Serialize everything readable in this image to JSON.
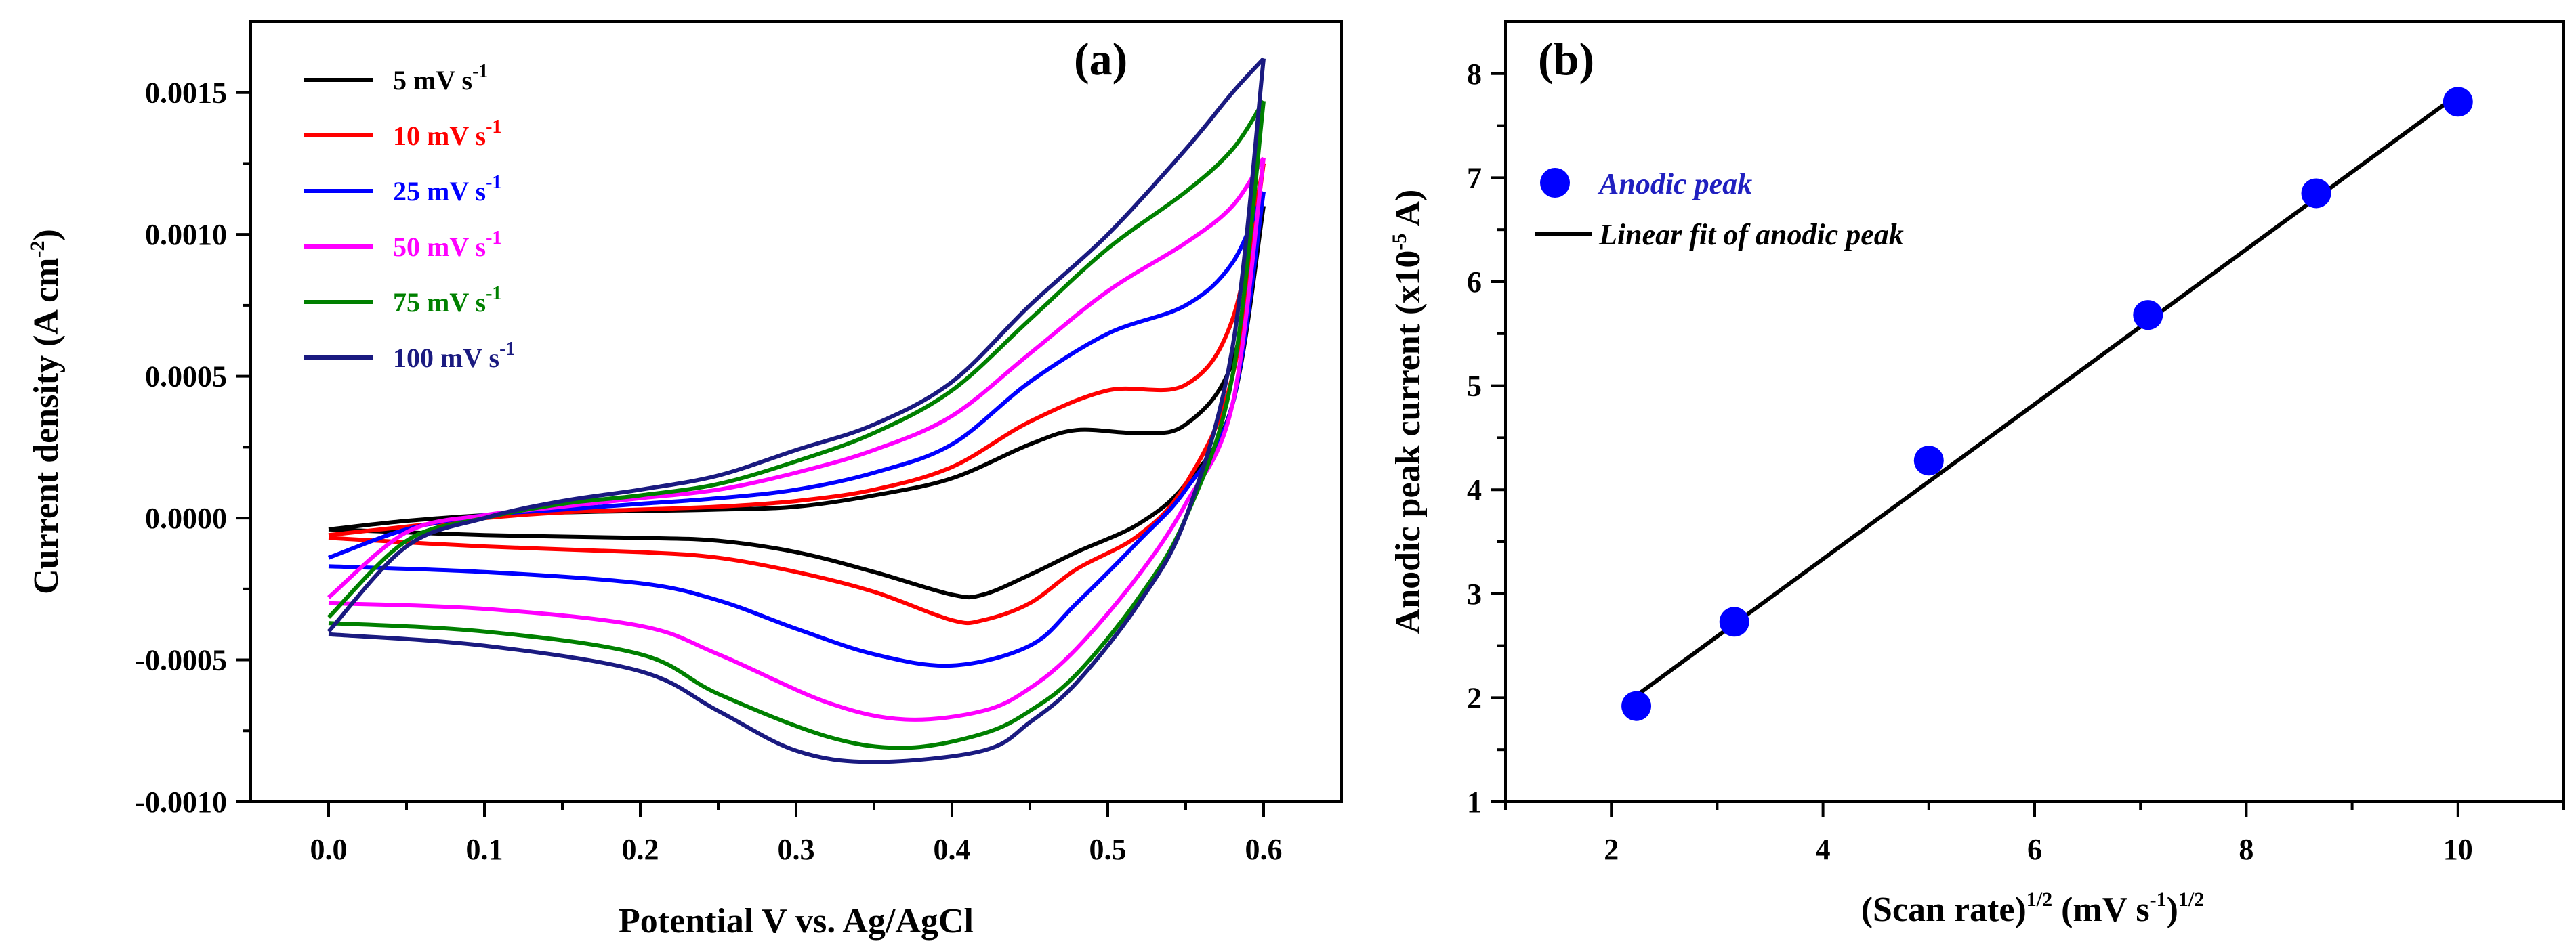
{
  "chart_data": [
    {
      "type": "line",
      "panel_label": "(a)",
      "title": "",
      "xlabel": "Potential V vs. Ag/AgCl",
      "ylabel_main": "Current density (A cm",
      "ylabel_sup": "-2",
      "ylabel_end": ")",
      "xlim": [
        -0.05,
        0.65
      ],
      "ylim": [
        -0.001,
        0.00175
      ],
      "x_ticks": [
        0.0,
        0.1,
        0.2,
        0.3,
        0.4,
        0.5,
        0.6
      ],
      "x_tick_labels": [
        "0.0",
        "0.1",
        "0.2",
        "0.3",
        "0.4",
        "0.5",
        "0.6"
      ],
      "y_ticks": [
        -0.001,
        -0.0005,
        0.0,
        0.0005,
        0.001,
        0.0015
      ],
      "y_tick_labels": [
        "-0.0010",
        "-0.0005",
        "0.0000",
        "0.0005",
        "0.0010",
        "0.0015"
      ],
      "legend_position": "top-left",
      "series": [
        {
          "name": "5 mV s",
          "unit_sup": "-1",
          "color": "#000000",
          "forward": [
            [
              0.0,
              -4e-05
            ],
            [
              0.05,
              -1e-05
            ],
            [
              0.1,
              1e-05
            ],
            [
              0.15,
              2e-05
            ],
            [
              0.2,
              2.5e-05
            ],
            [
              0.25,
              3e-05
            ],
            [
              0.3,
              4e-05
            ],
            [
              0.35,
              8e-05
            ],
            [
              0.4,
              0.00014
            ],
            [
              0.45,
              0.00026
            ],
            [
              0.48,
              0.00031
            ],
            [
              0.52,
              0.0003
            ],
            [
              0.55,
              0.00033
            ],
            [
              0.58,
              0.00055
            ],
            [
              0.6,
              0.0011
            ]
          ],
          "reverse": [
            [
              0.6,
              0.0011
            ],
            [
              0.58,
              0.0004
            ],
            [
              0.55,
              0.00012
            ],
            [
              0.52,
              -2e-05
            ],
            [
              0.48,
              -0.00012
            ],
            [
              0.45,
              -0.0002
            ],
            [
              0.42,
              -0.00027
            ],
            [
              0.4,
              -0.00027
            ],
            [
              0.35,
              -0.00019
            ],
            [
              0.3,
              -0.00012
            ],
            [
              0.25,
              -8e-05
            ],
            [
              0.2,
              -7e-05
            ],
            [
              0.1,
              -6e-05
            ],
            [
              0.0,
              -4e-05
            ]
          ]
        },
        {
          "name": "10 mV s",
          "unit_sup": "-1",
          "color": "#ff0000",
          "forward": [
            [
              0.0,
              -6e-05
            ],
            [
              0.05,
              -3e-05
            ],
            [
              0.1,
              0.0
            ],
            [
              0.15,
              2e-05
            ],
            [
              0.2,
              3e-05
            ],
            [
              0.25,
              4e-05
            ],
            [
              0.3,
              6e-05
            ],
            [
              0.35,
              0.0001
            ],
            [
              0.4,
              0.00018
            ],
            [
              0.45,
              0.00034
            ],
            [
              0.5,
              0.00045
            ],
            [
              0.55,
              0.00047
            ],
            [
              0.58,
              0.0007
            ],
            [
              0.6,
              0.00125
            ]
          ],
          "reverse": [
            [
              0.6,
              0.00125
            ],
            [
              0.58,
              0.0005
            ],
            [
              0.55,
              0.00012
            ],
            [
              0.52,
              -6e-05
            ],
            [
              0.48,
              -0.00018
            ],
            [
              0.45,
              -0.0003
            ],
            [
              0.42,
              -0.00036
            ],
            [
              0.4,
              -0.00036
            ],
            [
              0.35,
              -0.00026
            ],
            [
              0.3,
              -0.00019
            ],
            [
              0.25,
              -0.00014
            ],
            [
              0.2,
              -0.00012
            ],
            [
              0.1,
              -0.0001
            ],
            [
              0.0,
              -7e-05
            ]
          ]
        },
        {
          "name": "25 mV s",
          "unit_sup": "-1",
          "color": "#0000ff",
          "forward": [
            [
              0.0,
              -0.00014
            ],
            [
              0.05,
              -4e-05
            ],
            [
              0.1,
              1e-05
            ],
            [
              0.15,
              3e-05
            ],
            [
              0.2,
              5e-05
            ],
            [
              0.25,
              7e-05
            ],
            [
              0.3,
              0.0001
            ],
            [
              0.35,
              0.00016
            ],
            [
              0.4,
              0.00026
            ],
            [
              0.45,
              0.00048
            ],
            [
              0.5,
              0.00065
            ],
            [
              0.55,
              0.00075
            ],
            [
              0.58,
              0.0009
            ],
            [
              0.6,
              0.00115
            ]
          ],
          "reverse": [
            [
              0.6,
              0.00115
            ],
            [
              0.58,
              0.0004
            ],
            [
              0.55,
              0.0001
            ],
            [
              0.52,
              -8e-05
            ],
            [
              0.48,
              -0.0003
            ],
            [
              0.45,
              -0.00045
            ],
            [
              0.4,
              -0.00052
            ],
            [
              0.35,
              -0.00048
            ],
            [
              0.3,
              -0.00039
            ],
            [
              0.25,
              -0.00029
            ],
            [
              0.2,
              -0.00023
            ],
            [
              0.1,
              -0.00019
            ],
            [
              0.0,
              -0.00017
            ]
          ]
        },
        {
          "name": "50 mV s",
          "unit_sup": "-1",
          "color": "#ff00ff",
          "forward": [
            [
              0.0,
              -0.00028
            ],
            [
              0.05,
              -5e-05
            ],
            [
              0.1,
              1e-05
            ],
            [
              0.15,
              4e-05
            ],
            [
              0.2,
              7e-05
            ],
            [
              0.25,
              0.0001
            ],
            [
              0.3,
              0.00016
            ],
            [
              0.35,
              0.00024
            ],
            [
              0.4,
              0.00036
            ],
            [
              0.45,
              0.00058
            ],
            [
              0.5,
              0.0008
            ],
            [
              0.55,
              0.00097
            ],
            [
              0.58,
              0.0011
            ],
            [
              0.6,
              0.00127
            ]
          ],
          "reverse": [
            [
              0.6,
              0.00127
            ],
            [
              0.58,
              0.0004
            ],
            [
              0.55,
              5e-05
            ],
            [
              0.52,
              -0.0002
            ],
            [
              0.48,
              -0.00046
            ],
            [
              0.45,
              -0.0006
            ],
            [
              0.42,
              -0.00068
            ],
            [
              0.37,
              -0.00071
            ],
            [
              0.32,
              -0.00065
            ],
            [
              0.25,
              -0.00048
            ],
            [
              0.2,
              -0.00038
            ],
            [
              0.1,
              -0.00032
            ],
            [
              0.0,
              -0.0003
            ]
          ]
        },
        {
          "name": "75 mV s",
          "unit_sup": "-1",
          "color": "#008000",
          "forward": [
            [
              0.0,
              -0.00035
            ],
            [
              0.05,
              -8e-05
            ],
            [
              0.1,
              0.0
            ],
            [
              0.15,
              5e-05
            ],
            [
              0.2,
              8e-05
            ],
            [
              0.25,
              0.00012
            ],
            [
              0.3,
              0.0002
            ],
            [
              0.35,
              0.0003
            ],
            [
              0.4,
              0.00045
            ],
            [
              0.45,
              0.0007
            ],
            [
              0.5,
              0.00095
            ],
            [
              0.55,
              0.00115
            ],
            [
              0.58,
              0.0013
            ],
            [
              0.6,
              0.00147
            ]
          ],
          "reverse": [
            [
              0.6,
              0.00147
            ],
            [
              0.58,
              0.0005
            ],
            [
              0.55,
              0.0
            ],
            [
              0.52,
              -0.00028
            ],
            [
              0.48,
              -0.00055
            ],
            [
              0.45,
              -0.00068
            ],
            [
              0.42,
              -0.00076
            ],
            [
              0.37,
              -0.00081
            ],
            [
              0.32,
              -0.00077
            ],
            [
              0.25,
              -0.00062
            ],
            [
              0.2,
              -0.00048
            ],
            [
              0.1,
              -0.0004
            ],
            [
              0.0,
              -0.00037
            ]
          ]
        },
        {
          "name": "100 mV s",
          "unit_sup": "-1",
          "color": "#1a1a80",
          "forward": [
            [
              0.0,
              -0.0004
            ],
            [
              0.05,
              -0.0001
            ],
            [
              0.1,
              0.0
            ],
            [
              0.15,
              6e-05
            ],
            [
              0.2,
              0.0001
            ],
            [
              0.25,
              0.00015
            ],
            [
              0.3,
              0.00024
            ],
            [
              0.35,
              0.00033
            ],
            [
              0.4,
              0.00048
            ],
            [
              0.45,
              0.00075
            ],
            [
              0.5,
              0.001
            ],
            [
              0.55,
              0.0013
            ],
            [
              0.58,
              0.0015
            ],
            [
              0.6,
              0.00162
            ]
          ],
          "reverse": [
            [
              0.6,
              0.00162
            ],
            [
              0.58,
              0.0006
            ],
            [
              0.55,
              0.0
            ],
            [
              0.52,
              -0.0003
            ],
            [
              0.48,
              -0.00058
            ],
            [
              0.45,
              -0.00072
            ],
            [
              0.42,
              -0.00082
            ],
            [
              0.35,
              -0.00086
            ],
            [
              0.3,
              -0.00082
            ],
            [
              0.25,
              -0.00068
            ],
            [
              0.2,
              -0.00054
            ],
            [
              0.1,
              -0.00045
            ],
            [
              0.0,
              -0.00041
            ]
          ]
        }
      ]
    },
    {
      "type": "scatter",
      "panel_label": "(b)",
      "title": "",
      "xlabel_main": "(Scan rate)",
      "xlabel_sup1": "1/2",
      "xlabel_mid": " (mV s",
      "xlabel_sup2": "-1",
      "xlabel_end": ")",
      "xlabel_sup3": "1/2",
      "ylabel_main": "Anodic peak current (x10",
      "ylabel_sup": "-5",
      "ylabel_end": " A)",
      "xlim": [
        1,
        11
      ],
      "ylim": [
        1,
        8.5
      ],
      "x_ticks": [
        2,
        4,
        6,
        8,
        10
      ],
      "x_tick_labels": [
        "2",
        "4",
        "6",
        "8",
        "10"
      ],
      "y_ticks": [
        1,
        2,
        3,
        4,
        5,
        6,
        7,
        8
      ],
      "y_tick_labels": [
        "1",
        "2",
        "3",
        "4",
        "5",
        "6",
        "7",
        "8"
      ],
      "legend_position": "top-left",
      "points_name": "Anodic peak",
      "points_color": "#0000ff",
      "points": [
        [
          2.236,
          1.92
        ],
        [
          3.162,
          2.73
        ],
        [
          5.0,
          4.28
        ],
        [
          7.071,
          5.68
        ],
        [
          8.66,
          6.85
        ],
        [
          10.0,
          7.73
        ]
      ],
      "fit_name": "Linear fit of anodic peak",
      "fit_color": "#000000",
      "fit_line": [
        [
          2.236,
          2.02
        ],
        [
          10.0,
          7.8
        ]
      ]
    }
  ]
}
